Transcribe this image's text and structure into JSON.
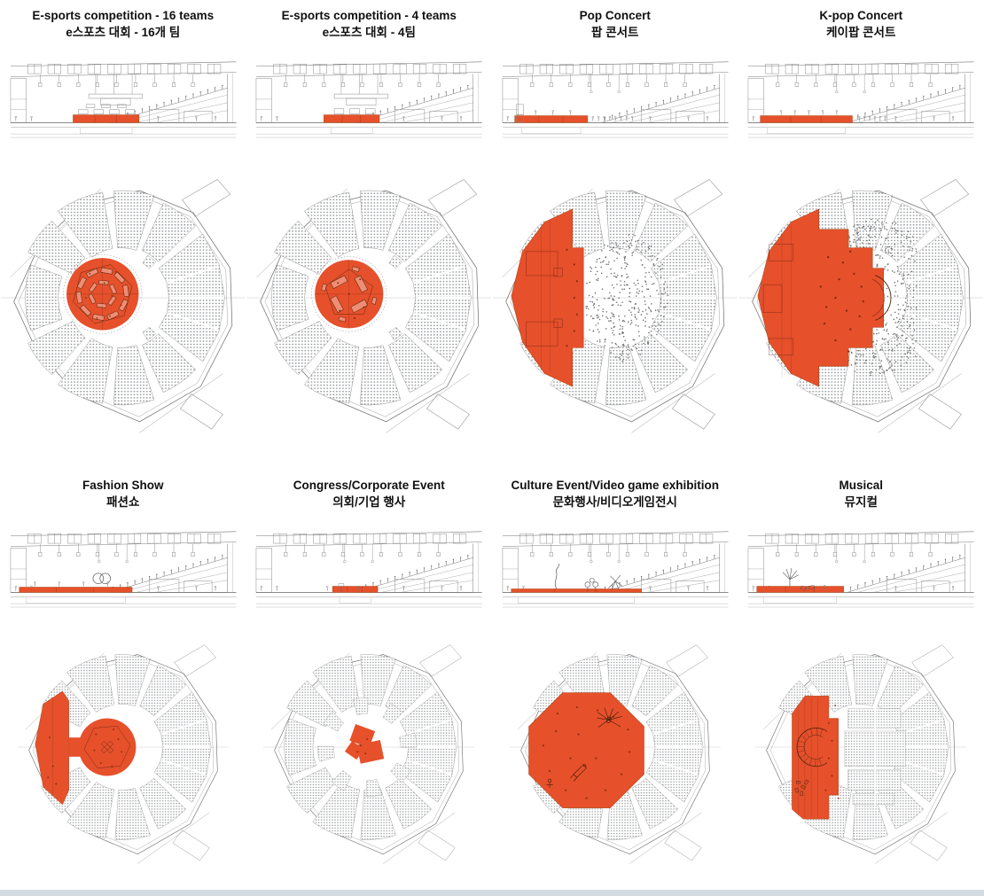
{
  "figure": {
    "name": "arena-event-configuration-diagrams",
    "colors": {
      "stage": "#E6502B",
      "stage_outline": "#A8410F",
      "detail_ink": "#57280E",
      "accent_dots": "#7E2A0C",
      "line": "#8A8A8A",
      "light_line": "#B5B5B5",
      "seat": "#8F9396",
      "crowd": "#6E6E6E",
      "text": "#101010",
      "bottom_strip": "#D5DCE1"
    },
    "panels": [
      {
        "id": "esports-16",
        "title_en": "E-sports competition - 16 teams",
        "title_ko": "e스포츠 대회 - 16개 팀",
        "layout": "esports16",
        "plan_overlay": "center-circle-16-team-stations",
        "section_overlay": "center-platform"
      },
      {
        "id": "esports-4",
        "title_en": "E-sports competition - 4 teams",
        "title_ko": "e스포츠 대회 - 4팀",
        "layout": "esports4",
        "plan_overlay": "center-circle-4-team-stations",
        "section_overlay": "center-platform"
      },
      {
        "id": "pop-concert",
        "title_en": "Pop Concert",
        "title_ko": "팝 콘서트",
        "layout": "pop",
        "plan_overlay": "end-stage-west-standing-floor",
        "section_overlay": "left-stage"
      },
      {
        "id": "kpop-concert",
        "title_en": "K-pop Concert",
        "title_ko": "케이팝 콘서트",
        "layout": "kpop",
        "plan_overlay": "end-stage-with-thrust-and-catwalk",
        "section_overlay": "left-wide-stage"
      },
      {
        "id": "fashion-show",
        "title_en": "Fashion Show",
        "title_ko": "패션쇼",
        "layout": "fashion",
        "plan_overlay": "backstage-west-plus-central-runway-circle",
        "section_overlay": "long-runway"
      },
      {
        "id": "congress",
        "title_en": "Congress/Corporate Event",
        "title_ko": "의회/기업 행사",
        "layout": "congress",
        "plan_overlay": "small-central-podium-in-the-round",
        "section_overlay": "center-podium"
      },
      {
        "id": "culture-event",
        "title_en": "Culture Event/Video game exhibition",
        "title_ko": "문화행사/비디오게임전시",
        "layout": "culture",
        "plan_overlay": "full-floor-exhibition-octagon",
        "section_overlay": "flat-exhibition-floor"
      },
      {
        "id": "musical",
        "title_en": "Musical",
        "title_ko": "뮤지컬",
        "layout": "musical",
        "plan_overlay": "west-proscenium-stage-with-set-arc-and-floor-seating",
        "section_overlay": "left-stage-with-sets"
      }
    ]
  }
}
